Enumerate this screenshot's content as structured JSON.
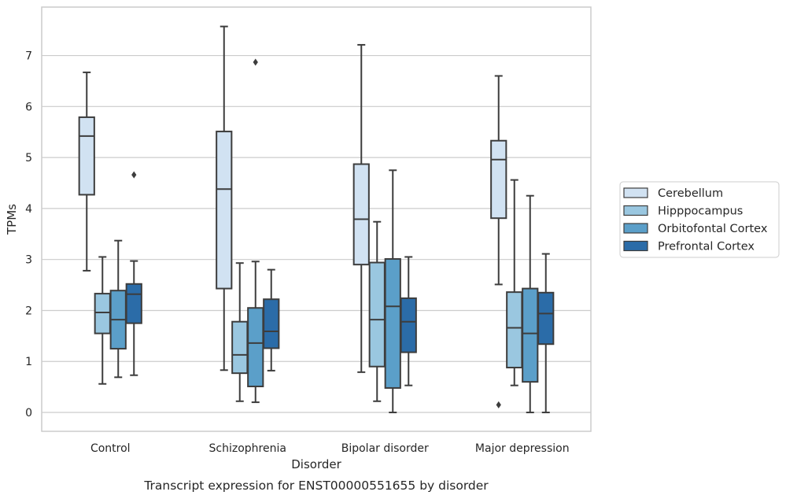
{
  "chart_data": {
    "type": "box",
    "caption": "Transcript expression for ENST00000551655 by disorder",
    "xlabel": "Disorder",
    "ylabel": "TPMs",
    "ylim": [
      -0.37,
      7.95
    ],
    "yticks": [
      0,
      1,
      2,
      3,
      4,
      5,
      6,
      7
    ],
    "grid": "horizontal",
    "legend_position": "right",
    "categories": [
      "Control",
      "Schizophrenia",
      "Bipolar disorder",
      "Major depression"
    ],
    "series": [
      {
        "name": "Cerebellum",
        "color": "#d1e2f2",
        "boxes": [
          {
            "whisker_low": 2.78,
            "q1": 4.27,
            "median": 5.42,
            "q3": 5.79,
            "whisker_high": 6.67,
            "outliers": []
          },
          {
            "whisker_low": 0.83,
            "q1": 2.43,
            "median": 4.38,
            "q3": 5.51,
            "whisker_high": 7.57,
            "outliers": []
          },
          {
            "whisker_low": 0.79,
            "q1": 2.9,
            "median": 3.79,
            "q3": 4.87,
            "whisker_high": 7.21,
            "outliers": []
          },
          {
            "whisker_low": 2.51,
            "q1": 3.81,
            "median": 4.96,
            "q3": 5.33,
            "whisker_high": 6.6,
            "outliers": [
              0.15
            ]
          }
        ]
      },
      {
        "name": "Hipppocampus",
        "color": "#9ac7e0",
        "boxes": [
          {
            "whisker_low": 0.56,
            "q1": 1.55,
            "median": 1.96,
            "q3": 2.33,
            "whisker_high": 3.05,
            "outliers": []
          },
          {
            "whisker_low": 0.22,
            "q1": 0.77,
            "median": 1.13,
            "q3": 1.78,
            "whisker_high": 2.93,
            "outliers": []
          },
          {
            "whisker_low": 0.22,
            "q1": 0.9,
            "median": 1.82,
            "q3": 2.94,
            "whisker_high": 3.74,
            "outliers": []
          },
          {
            "whisker_low": 0.53,
            "q1": 0.88,
            "median": 1.66,
            "q3": 2.36,
            "whisker_high": 4.56,
            "outliers": []
          }
        ]
      },
      {
        "name": "Orbitofontal Cortex",
        "color": "#5b9fc9",
        "boxes": [
          {
            "whisker_low": 0.69,
            "q1": 1.25,
            "median": 1.82,
            "q3": 2.39,
            "whisker_high": 3.37,
            "outliers": []
          },
          {
            "whisker_low": 0.2,
            "q1": 0.51,
            "median": 1.36,
            "q3": 2.05,
            "whisker_high": 2.96,
            "outliers": [
              6.87
            ]
          },
          {
            "whisker_low": 0.0,
            "q1": 0.48,
            "median": 2.08,
            "q3": 3.01,
            "whisker_high": 4.75,
            "outliers": []
          },
          {
            "whisker_low": 0.0,
            "q1": 0.6,
            "median": 1.55,
            "q3": 2.43,
            "whisker_high": 4.25,
            "outliers": []
          }
        ]
      },
      {
        "name": "Prefrontal Cortex",
        "color": "#2b6ca8",
        "boxes": [
          {
            "whisker_low": 0.73,
            "q1": 1.75,
            "median": 2.32,
            "q3": 2.52,
            "whisker_high": 2.97,
            "outliers": [
              4.66
            ]
          },
          {
            "whisker_low": 0.82,
            "q1": 1.26,
            "median": 1.59,
            "q3": 2.22,
            "whisker_high": 2.8,
            "outliers": []
          },
          {
            "whisker_low": 0.53,
            "q1": 1.18,
            "median": 1.78,
            "q3": 2.24,
            "whisker_high": 3.05,
            "outliers": []
          },
          {
            "whisker_low": 0.0,
            "q1": 1.34,
            "median": 1.94,
            "q3": 2.35,
            "whisker_high": 3.11,
            "outliers": []
          }
        ]
      }
    ]
  }
}
